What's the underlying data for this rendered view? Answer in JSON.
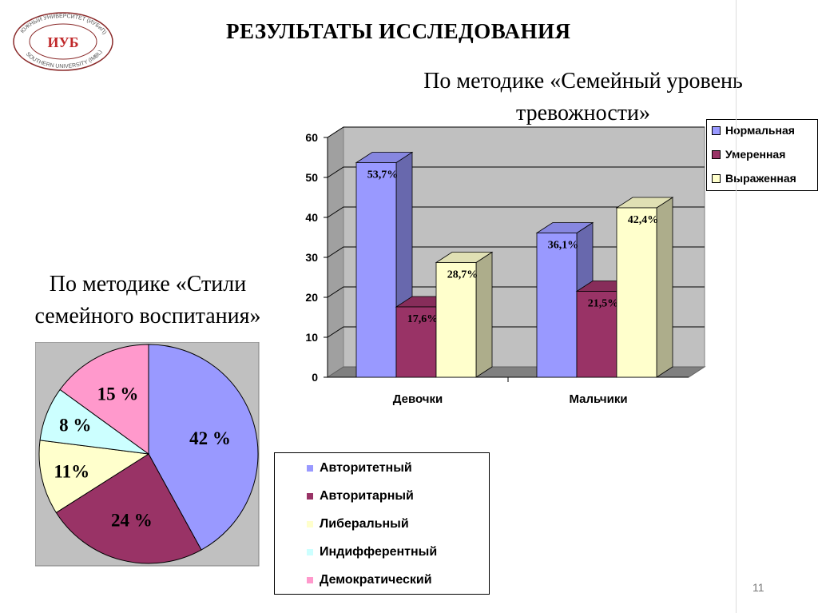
{
  "title": "РЕЗУЛЬТАТЫ  ИССЛЕДОВАНИЯ",
  "logo": {
    "top_text": "ЮЖНЫЙ УНИВЕРСИТЕТ (ИУБиП)",
    "bottom_text": "SOUTHERN UNIVERSITY (IMBL)",
    "mark": "ИУБ"
  },
  "page_number": "11",
  "chart_data": [
    {
      "type": "bar",
      "title_line1": "По методике «Семейный уровень",
      "title_line2": "тревожности»",
      "categories": [
        "Девочки",
        "Мальчики"
      ],
      "series": [
        {
          "name": "Нормальная",
          "values": [
            53.7,
            36.1
          ],
          "labels": [
            "53,7%",
            "36,1%"
          ],
          "color": "#9999FF"
        },
        {
          "name": "Умеренная",
          "values": [
            17.6,
            21.5
          ],
          "labels": [
            "17,6%",
            "21,5%"
          ],
          "color": "#993366"
        },
        {
          "name": "Выраженная",
          "values": [
            28.7,
            42.4
          ],
          "labels": [
            "28,7%",
            "42,4%"
          ],
          "color": "#FFFFCC"
        }
      ],
      "ylim": [
        0,
        60
      ],
      "yticks": [
        "0",
        "10",
        "20",
        "30",
        "40",
        "50",
        "60"
      ],
      "grid": true,
      "legend_position": "top-right"
    },
    {
      "type": "pie",
      "title_line1": "По методике «Стили",
      "title_line2": "семейного воспитания»",
      "slices": [
        {
          "name": "Авторитетный",
          "value": 42,
          "label": "42 %",
          "color": "#9999FF"
        },
        {
          "name": "Авторитарный",
          "value": 24,
          "label": "24 %",
          "color": "#993366"
        },
        {
          "name": "Либеральный",
          "value": 11,
          "label": "11%",
          "color": "#FFFFCC"
        },
        {
          "name": "Индифферентный",
          "value": 8,
          "label": "8 %",
          "color": "#CCFFFF"
        },
        {
          "name": "Демократический",
          "value": 15,
          "label": "15 %",
          "color": "#FF99CC"
        }
      ],
      "legend_position": "bottom-right"
    }
  ]
}
